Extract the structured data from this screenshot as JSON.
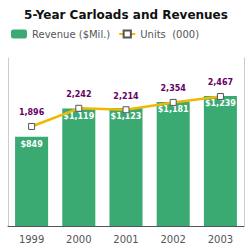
{
  "chart_data": {
    "type": "bar",
    "title": "5-Year Carloads and Revenues",
    "categories": [
      "1999",
      "2000",
      "2001",
      "2002",
      "2003"
    ],
    "series": [
      {
        "name": "Revenue ($Mil.)",
        "type": "bar",
        "color": "#3aaa72",
        "values": [
          849,
          1119,
          1123,
          1181,
          1239
        ],
        "value_labels": [
          "$849",
          "$1,119",
          "$1,123",
          "$1,181",
          "$1,239"
        ]
      },
      {
        "name": "Units  (000)",
        "type": "line",
        "axis": "y2",
        "color": "#f0b800",
        "marker": "square",
        "values": [
          1896,
          2242,
          2214,
          2354,
          2467
        ],
        "value_labels": [
          "1,896",
          "2,242",
          "2,214",
          "2,354",
          "2,467"
        ]
      }
    ],
    "ylim": [
      0,
      1600
    ],
    "y2lim": [
      0,
      3200
    ],
    "data_labels": true,
    "tick_labels": "x",
    "legend": "upper left",
    "grid": false
  }
}
